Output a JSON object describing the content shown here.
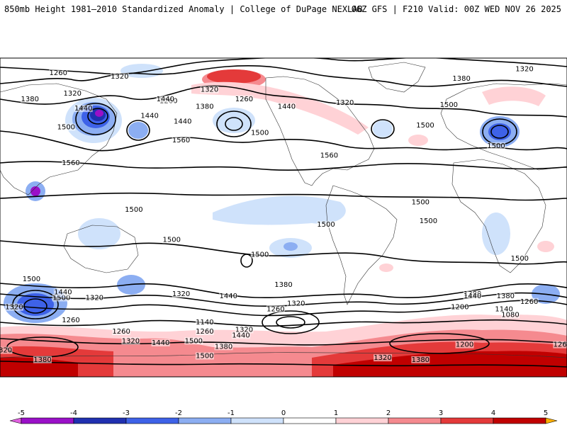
{
  "header": {
    "left_title": "850mb Height 1981–2010 Standardized Anomaly | College of DuPage NEXLAB",
    "right_title": "06Z GFS | F210 Valid: 00Z WED NOV 26 2025"
  },
  "legend": {
    "ticks": [
      "-5",
      "-4",
      "-3",
      "-2",
      "-1",
      "0",
      "1",
      "2",
      "3",
      "4",
      "5"
    ],
    "colors": [
      "#e060e0",
      "#9a10c8",
      "#2030b0",
      "#3e62e8",
      "#8caef2",
      "#cfe2fb",
      "#ffffff",
      "#ffd2d6",
      "#f58a8f",
      "#e43a3a",
      "#c00000",
      "#ffb000"
    ]
  },
  "contour_labels": [
    {
      "text": "1320",
      "lon": -172,
      "lat": 62
    },
    {
      "text": "1260",
      "lon": 162,
      "lat": 56
    },
    {
      "text": "1320",
      "lon": 28,
      "lat": 73
    },
    {
      "text": "1380",
      "lon": -12,
      "lat": 68
    },
    {
      "text": "1260",
      "lon": 92,
      "lat": 71
    },
    {
      "text": "1320",
      "lon": 131,
      "lat": 69
    },
    {
      "text": "1440",
      "lon": 160,
      "lat": 57
    },
    {
      "text": "1380",
      "lon": -175,
      "lat": 53
    },
    {
      "text": "1500",
      "lon": -20,
      "lat": 54
    },
    {
      "text": "1440",
      "lon": -123,
      "lat": 53
    },
    {
      "text": "1320",
      "lon": -86,
      "lat": 55
    },
    {
      "text": "1440",
      "lon": 150,
      "lat": 48
    },
    {
      "text": "1500",
      "lon": -35,
      "lat": 43
    },
    {
      "text": "1260",
      "lon": -150,
      "lat": 57
    },
    {
      "text": "1380",
      "lon": 74,
      "lat": 57
    },
    {
      "text": "1320",
      "lon": 101,
      "lat": 60
    },
    {
      "text": "1440",
      "lon": 108,
      "lat": 52
    },
    {
      "text": "1500",
      "lon": 97,
      "lat": 42
    },
    {
      "text": "1440",
      "lon": 171,
      "lat": 45
    },
    {
      "text": "1500",
      "lon": -140,
      "lat": 39
    },
    {
      "text": "1560",
      "lon": 170,
      "lat": 35
    },
    {
      "text": "1500",
      "lon": 10,
      "lat": 32
    },
    {
      "text": "1560",
      "lon": -96,
      "lat": 27
    },
    {
      "text": "1560",
      "lon": 100,
      "lat": 23
    },
    {
      "text": "1500",
      "lon": -38,
      "lat": 2
    },
    {
      "text": "1500",
      "lon": 140,
      "lat": -2
    },
    {
      "text": "1500",
      "lon": -33,
      "lat": -8
    },
    {
      "text": "1500",
      "lon": 164,
      "lat": -18
    },
    {
      "text": "1500",
      "lon": -98,
      "lat": -10
    },
    {
      "text": "1500",
      "lon": -140,
      "lat": -26
    },
    {
      "text": "1500",
      "lon": 25,
      "lat": -28
    },
    {
      "text": "1500",
      "lon": 75,
      "lat": -39
    },
    {
      "text": "1500",
      "lon": 94,
      "lat": -49
    },
    {
      "text": "1380",
      "lon": -125,
      "lat": -42
    },
    {
      "text": "1440",
      "lon": 95,
      "lat": -46
    },
    {
      "text": "1380",
      "lon": -5,
      "lat": -47
    },
    {
      "text": "1320",
      "lon": 170,
      "lat": -47
    },
    {
      "text": "1320",
      "lon": 115,
      "lat": -49
    },
    {
      "text": "1440",
      "lon": -160,
      "lat": -48
    },
    {
      "text": "1440",
      "lon": -5,
      "lat": -48
    },
    {
      "text": "1380",
      "lon": 16,
      "lat": -48
    },
    {
      "text": "1320",
      "lon": -117,
      "lat": -52
    },
    {
      "text": "1260",
      "lon": -130,
      "lat": -55
    },
    {
      "text": "1260",
      "lon": 31,
      "lat": -51
    },
    {
      "text": "1200",
      "lon": -13,
      "lat": -54
    },
    {
      "text": "1140",
      "lon": 15,
      "lat": -55
    },
    {
      "text": "1080",
      "lon": 19,
      "lat": -58
    },
    {
      "text": "1320",
      "lon": 64,
      "lat": -54
    },
    {
      "text": "1140",
      "lon": -175,
      "lat": -62
    },
    {
      "text": "1260",
      "lon": 100,
      "lat": -61
    },
    {
      "text": "1260",
      "lon": -175,
      "lat": -67
    },
    {
      "text": "1320",
      "lon": -150,
      "lat": -66
    },
    {
      "text": "1440",
      "lon": -152,
      "lat": -69
    },
    {
      "text": "1260",
      "lon": 132,
      "lat": -67
    },
    {
      "text": "1320",
      "lon": 138,
      "lat": -72
    },
    {
      "text": "1440",
      "lon": 157,
      "lat": -73
    },
    {
      "text": "1500",
      "lon": 178,
      "lat": -72
    },
    {
      "text": "1380",
      "lon": -163,
      "lat": -75
    },
    {
      "text": "1200",
      "lon": -10,
      "lat": -74
    },
    {
      "text": "1260",
      "lon": 52,
      "lat": -74
    },
    {
      "text": "1320",
      "lon": 57,
      "lat": -77
    },
    {
      "text": "1500",
      "lon": -175,
      "lat": -80
    },
    {
      "text": "1320",
      "lon": -62,
      "lat": -81
    },
    {
      "text": "1380",
      "lon": -38,
      "lat": -82
    },
    {
      "text": "1380",
      "lon": 82,
      "lat": -82
    }
  ]
}
